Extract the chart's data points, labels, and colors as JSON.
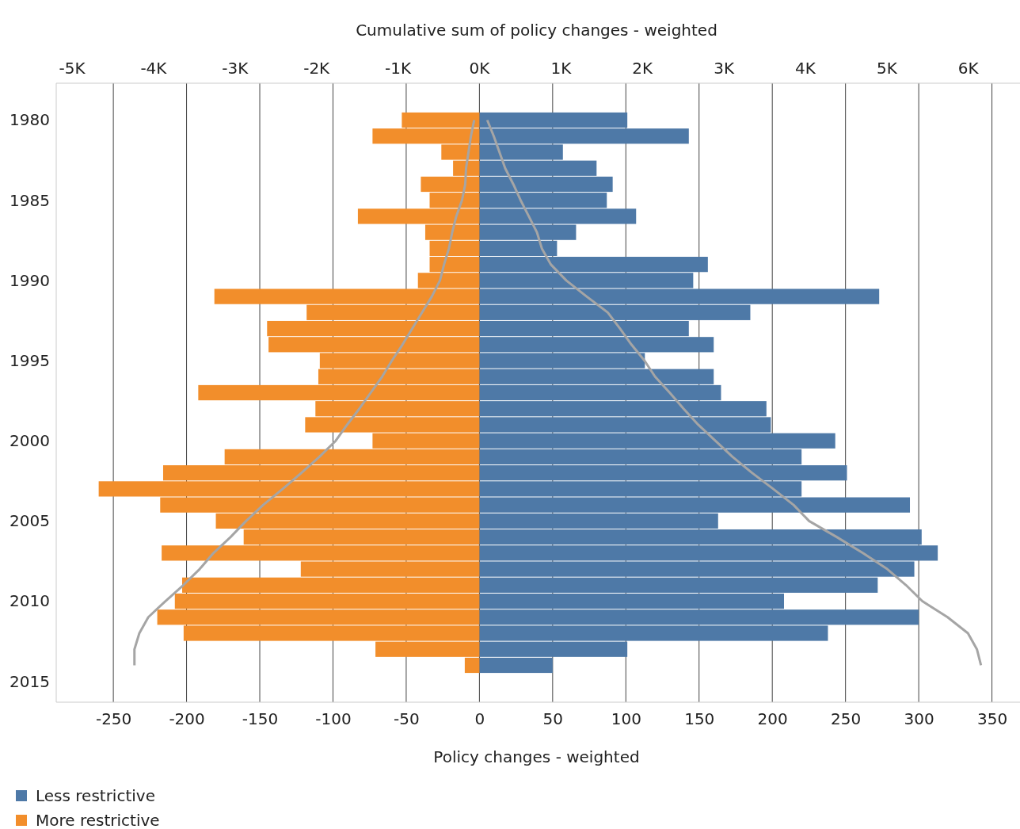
{
  "chart_data": {
    "type": "bar",
    "orientation": "horizontal",
    "xlabel": "Policy changes - weighted",
    "x2label": "Cumulative sum of policy changes - weighted",
    "x": [
      1980,
      1981,
      1982,
      1983,
      1984,
      1985,
      1986,
      1987,
      1988,
      1989,
      1990,
      1991,
      1992,
      1993,
      1994,
      1995,
      1996,
      1997,
      1998,
      1999,
      2000,
      2001,
      2002,
      2003,
      2004,
      2005,
      2006,
      2007,
      2008,
      2009,
      2010,
      2011,
      2012,
      2013,
      2014
    ],
    "ylim": [
      2016.3,
      1977.7
    ],
    "yticks": [
      1980,
      1985,
      1990,
      1995,
      2000,
      2005,
      2010,
      2015
    ],
    "xlim": [
      -289,
      367
    ],
    "xticks": [
      -250,
      -200,
      -150,
      -100,
      -50,
      0,
      50,
      100,
      150,
      200,
      250,
      300,
      350
    ],
    "x2lim": [
      -5190,
      6600
    ],
    "x2ticks": [
      {
        "value": -5000,
        "label": "-5K"
      },
      {
        "value": -4000,
        "label": "-4K"
      },
      {
        "value": -3000,
        "label": "-3K"
      },
      {
        "value": -2000,
        "label": "-2K"
      },
      {
        "value": -1000,
        "label": "-1K"
      },
      {
        "value": 0,
        "label": "0K"
      },
      {
        "value": 1000,
        "label": "1K"
      },
      {
        "value": 2000,
        "label": "2K"
      },
      {
        "value": 3000,
        "label": "3K"
      },
      {
        "value": 4000,
        "label": "4K"
      },
      {
        "value": 5000,
        "label": "5K"
      },
      {
        "value": 6000,
        "label": "6K"
      }
    ],
    "grid": "x",
    "stacked": true,
    "legend": "bottom left",
    "series": [
      {
        "name": "Less restrictive",
        "color": "#4e79a7",
        "values": [
          101,
          143,
          57,
          80,
          91,
          87,
          107,
          66,
          53,
          156,
          146,
          273,
          185,
          143,
          160,
          113,
          160,
          165,
          196,
          199,
          243,
          220,
          251,
          220,
          294,
          163,
          302,
          313,
          297,
          272,
          208,
          300,
          238,
          101,
          50
        ]
      },
      {
        "name": "More restrictive",
        "color": "#f28e2b",
        "values": [
          -53,
          -73,
          -26,
          -18,
          -40,
          -34,
          -83,
          -37,
          -34,
          -34,
          -42,
          -181,
          -118,
          -145,
          -144,
          -109,
          -110,
          -192,
          -112,
          -119,
          -73,
          -174,
          -216,
          -260,
          -218,
          -180,
          -161,
          -217,
          -122,
          -203,
          -208,
          -220,
          -202,
          -71,
          -10
        ]
      },
      {
        "type": "line",
        "axis": "x2",
        "color": "#a5a5a5",
        "values": [
          100,
          180,
          250,
          320,
          420,
          510,
          610,
          710,
          770,
          880,
          1070,
          1320,
          1580,
          1730,
          1870,
          2030,
          2160,
          2340,
          2510,
          2690,
          2900,
          3110,
          3350,
          3610,
          3860,
          4050,
          4390,
          4710,
          5010,
          5240,
          5440,
          5750,
          6000,
          6110,
          6160
        ]
      },
      {
        "type": "line",
        "axis": "x2",
        "color": "#a5a5a5",
        "values": [
          -60,
          -100,
          -130,
          -160,
          -170,
          -210,
          -280,
          -330,
          -370,
          -430,
          -480,
          -580,
          -700,
          -820,
          -940,
          -1070,
          -1190,
          -1330,
          -1470,
          -1620,
          -1760,
          -1960,
          -2180,
          -2410,
          -2650,
          -2860,
          -3050,
          -3260,
          -3430,
          -3630,
          -3850,
          -4060,
          -4170,
          -4230,
          -4230
        ]
      }
    ]
  }
}
